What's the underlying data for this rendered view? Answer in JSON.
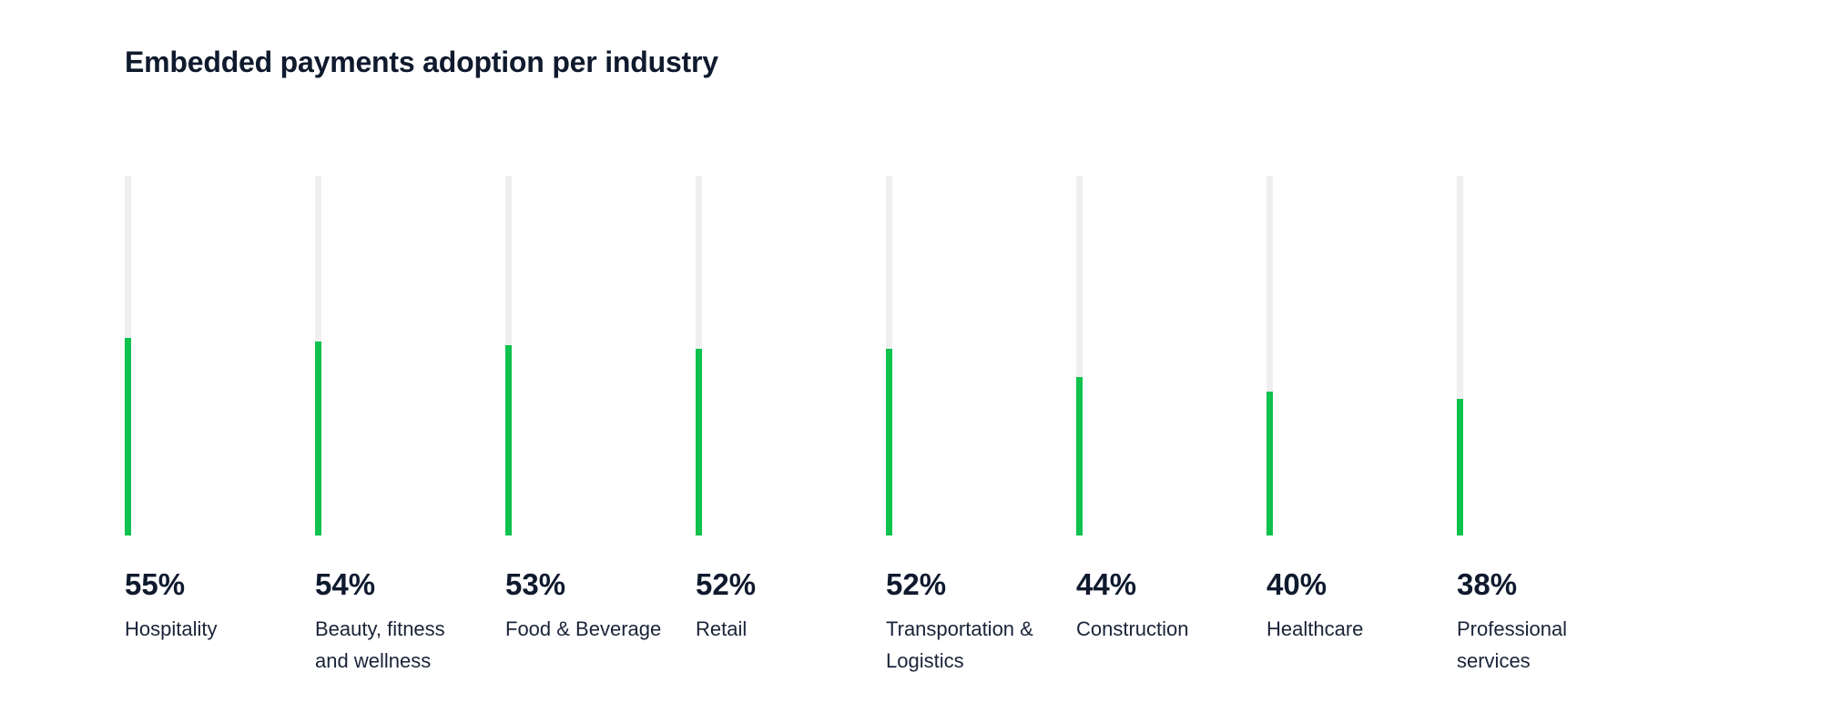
{
  "chart_data": {
    "type": "bar",
    "orientation": "vertical",
    "title": "Embedded payments adoption per industry",
    "xlabel": "",
    "ylabel": "",
    "ylim": [
      0,
      100
    ],
    "grid": false,
    "colors": {
      "bar": "#0fc14d",
      "track": "#efefef",
      "text": "#0f1a2e"
    },
    "categories": [
      "Hospitality",
      "Beauty, fitness and wellness",
      "Food & Beverage",
      "Retail",
      "Transportation & Logistics",
      "Construction",
      "Healthcare",
      "Professional services"
    ],
    "values": [
      55,
      54,
      53,
      52,
      52,
      44,
      40,
      38
    ],
    "value_labels": [
      "55%",
      "54%",
      "53%",
      "52%",
      "52%",
      "44%",
      "40%",
      "38%"
    ]
  }
}
